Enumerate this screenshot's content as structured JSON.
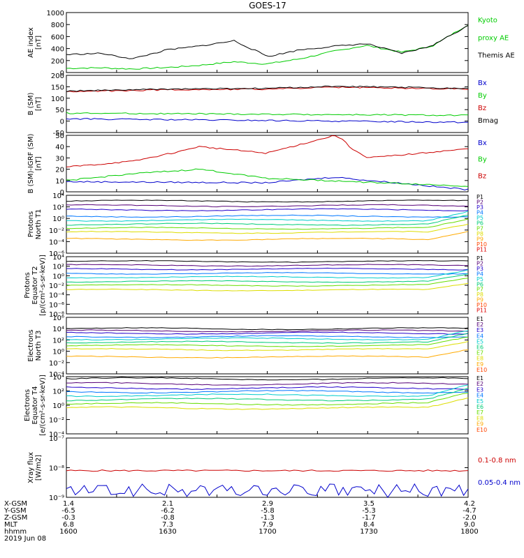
{
  "title": "GOES-17",
  "chart_data": [
    {
      "type": "line",
      "panel": "AE index",
      "ylabel": [
        "AE index",
        "[nT]"
      ],
      "yticks": [
        "1000",
        "800",
        "600",
        "400",
        "200",
        "0"
      ],
      "ylim": [
        0,
        1000
      ],
      "series": [
        {
          "name": "Kyoto",
          "color": "#00cc00",
          "x": [
            1600,
            1610,
            1620,
            1630,
            1640,
            1650,
            1700,
            1710,
            1720,
            1730,
            1740,
            1750,
            1800
          ],
          "values": [
            70,
            80,
            60,
            85,
            120,
            180,
            140,
            230,
            360,
            450,
            340,
            450,
            800
          ]
        },
        {
          "name": "proxy AE",
          "color": "#00cc00",
          "legend_only": true
        },
        {
          "name": "Themis AE",
          "color": "#000000",
          "x": [
            1600,
            1610,
            1620,
            1630,
            1640,
            1650,
            1700,
            1710,
            1720,
            1730,
            1740,
            1750,
            1800
          ],
          "values": [
            300,
            320,
            230,
            380,
            440,
            530,
            260,
            380,
            440,
            480,
            320,
            460,
            780
          ]
        }
      ]
    },
    {
      "type": "line",
      "panel": "B (SM)",
      "ylabel": [
        "B (SM)",
        "[nT]"
      ],
      "yticks": [
        "200",
        "150",
        "100",
        "50",
        "0",
        "-50"
      ],
      "ylim": [
        -50,
        200
      ],
      "series": [
        {
          "name": "Bx",
          "color": "#0000cc",
          "x": [
            1600,
            1800
          ],
          "values": [
            10,
            -5
          ]
        },
        {
          "name": "By",
          "color": "#00cc00",
          "x": [
            1600,
            1800
          ],
          "values": [
            35,
            25
          ]
        },
        {
          "name": "Bz",
          "color": "#cc0000",
          "x": [
            1600,
            1630,
            1700,
            1720,
            1800
          ],
          "values": [
            128,
            137,
            140,
            148,
            140
          ]
        },
        {
          "name": "Bmag",
          "color": "#000000",
          "x": [
            1600,
            1630,
            1700,
            1720,
            1800
          ],
          "values": [
            131,
            140,
            143,
            152,
            143
          ]
        }
      ]
    },
    {
      "type": "line",
      "panel": "B (SM)-IGRF (SM)",
      "ylabel": [
        "B (SM)-IGRF (SM)",
        "[nT]"
      ],
      "yticks": [
        "50",
        "40",
        "30",
        "20",
        "10",
        "0"
      ],
      "ylim": [
        0,
        50
      ],
      "series": [
        {
          "name": "Bx",
          "color": "#0000cc",
          "x": [
            1600,
            1700,
            1720,
            1800
          ],
          "values": [
            9,
            8,
            13,
            2
          ]
        },
        {
          "name": "By",
          "color": "#00cc00",
          "x": [
            1600,
            1620,
            1640,
            1700,
            1800
          ],
          "values": [
            10,
            16,
            20,
            12,
            5
          ]
        },
        {
          "name": "Bz",
          "color": "#cc0000",
          "x": [
            1600,
            1620,
            1640,
            1700,
            1720,
            1730,
            1800
          ],
          "values": [
            22,
            27,
            40,
            34,
            50,
            30,
            38
          ]
        }
      ]
    },
    {
      "type": "line",
      "panel": "Protons North T1",
      "ylabel": [
        "Protons",
        "North T1"
      ],
      "yticks": [
        "10⁴",
        "10²",
        "10⁰",
        "10⁻²",
        "10⁻⁴",
        "10⁻⁶"
      ],
      "ylim_log10": [
        -6,
        4
      ],
      "series_levels_log10": [
        3.0,
        2.2,
        1.5,
        0.4,
        -0.3,
        -1.0,
        -1.7,
        -2.4,
        -3.6
      ],
      "legend": [
        "P1",
        "P2",
        "P3",
        "P4",
        "P5",
        "P6",
        "P7",
        "P8",
        "P9",
        "P10",
        "P11"
      ],
      "colors": [
        "#000000",
        "#550077",
        "#2200cc",
        "#0077ff",
        "#00cccc",
        "#00cc77",
        "#66dd00",
        "#dddd00",
        "#ffaa00",
        "#ff4400",
        "#dd0000"
      ]
    },
    {
      "type": "line",
      "panel": "Protons Equator T2",
      "ylabel": [
        "Protons",
        "Equator T2",
        "[p/(cm²-s-sr-keV)]"
      ],
      "yticks": [
        "10⁴",
        "10²",
        "10⁰",
        "10⁻²",
        "10⁻⁴",
        "10⁻⁶",
        "10⁻⁸"
      ],
      "ylim_log10": [
        -8,
        4
      ],
      "series_levels_log10": [
        3.0,
        2.2,
        1.4,
        0.5,
        -0.3,
        -1.2,
        -2.0,
        -3.0
      ],
      "legend": [
        "P1",
        "P2",
        "P3",
        "P4",
        "P5",
        "P6",
        "P7",
        "P8",
        "P9",
        "P10",
        "P11"
      ],
      "colors": [
        "#000000",
        "#550077",
        "#2200cc",
        "#0077ff",
        "#00cccc",
        "#00cc77",
        "#66dd00",
        "#dddd00",
        "#ffaa00",
        "#ff4400",
        "#dd0000"
      ]
    },
    {
      "type": "line",
      "panel": "Electrons North T3",
      "ylabel": [
        "Electrons",
        "North T3"
      ],
      "yticks": [
        "10⁶",
        "10⁴",
        "10²",
        "10⁰",
        "10⁻²",
        "10⁻⁴"
      ],
      "ylim_log10": [
        -4,
        6
      ],
      "series_levels_log10": [
        4.0,
        3.6,
        3.2,
        2.6,
        2.2,
        1.6,
        1.0,
        0.3,
        -1.0
      ],
      "legend": [
        "E1",
        "E2",
        "E3",
        "E4",
        "E5",
        "E6",
        "E7",
        "E8",
        "E9",
        "E10"
      ],
      "colors": [
        "#000000",
        "#550077",
        "#2200cc",
        "#0077ff",
        "#00cccc",
        "#00cc77",
        "#66dd00",
        "#dddd00",
        "#ffaa00",
        "#ff4400",
        "#dd0000"
      ]
    },
    {
      "type": "line",
      "panel": "Electrons Equator T4",
      "ylabel": [
        "Electrons",
        "Equator T4",
        "[e/(cm²-s-sr-keV)]"
      ],
      "yticks": [
        "10⁴",
        "10²",
        "10⁰",
        "10⁻²",
        "10⁻⁴"
      ],
      "ylim_log10": [
        -4,
        4
      ],
      "series_levels_log10": [
        3.7,
        3.0,
        2.4,
        1.9,
        1.4,
        0.8,
        0.2,
        -0.4
      ],
      "legend": [
        "E1",
        "E2",
        "E3",
        "E4",
        "E5",
        "E6",
        "E7",
        "E8",
        "E9",
        "E10"
      ],
      "colors": [
        "#000000",
        "#550077",
        "#2200cc",
        "#0077ff",
        "#00cccc",
        "#00cc77",
        "#66dd00",
        "#dddd00",
        "#ffaa00",
        "#ff4400",
        "#dd0000"
      ]
    },
    {
      "type": "line",
      "panel": "Xray flux",
      "ylabel": [
        "Xray flux",
        "[W/m2]"
      ],
      "yticks": [
        "10⁻⁷",
        "10⁻⁸",
        "10⁻⁹"
      ],
      "ylim_log10": [
        -9,
        -7
      ],
      "series": [
        {
          "name": "0.1-0.8 nm",
          "color": "#cc0000",
          "level_log10": -8.1
        },
        {
          "name": "0.05-0.4 nm",
          "color": "#0000cc",
          "level_log10": -9.0
        }
      ]
    }
  ],
  "xaxis": {
    "rows": [
      {
        "label": "X-GSM",
        "values": [
          "1.4",
          "2.1",
          "2.9",
          "3.5",
          "4.2"
        ]
      },
      {
        "label": "Y-GSM",
        "values": [
          "-6.5",
          "-6.2",
          "-5.8",
          "-5.3",
          "-4.7"
        ]
      },
      {
        "label": "Z-GSM",
        "values": [
          "-0.3",
          "-0.8",
          "-1.3",
          "-1.7",
          "-2.0"
        ]
      },
      {
        "label": "MLT",
        "values": [
          "6.8",
          "7.3",
          "7.9",
          "8.4",
          "9.0"
        ]
      },
      {
        "label": "hhmm",
        "values": [
          "1600",
          "1630",
          "1700",
          "1730",
          "1800"
        ]
      }
    ],
    "date": "2019 Jun 08"
  }
}
